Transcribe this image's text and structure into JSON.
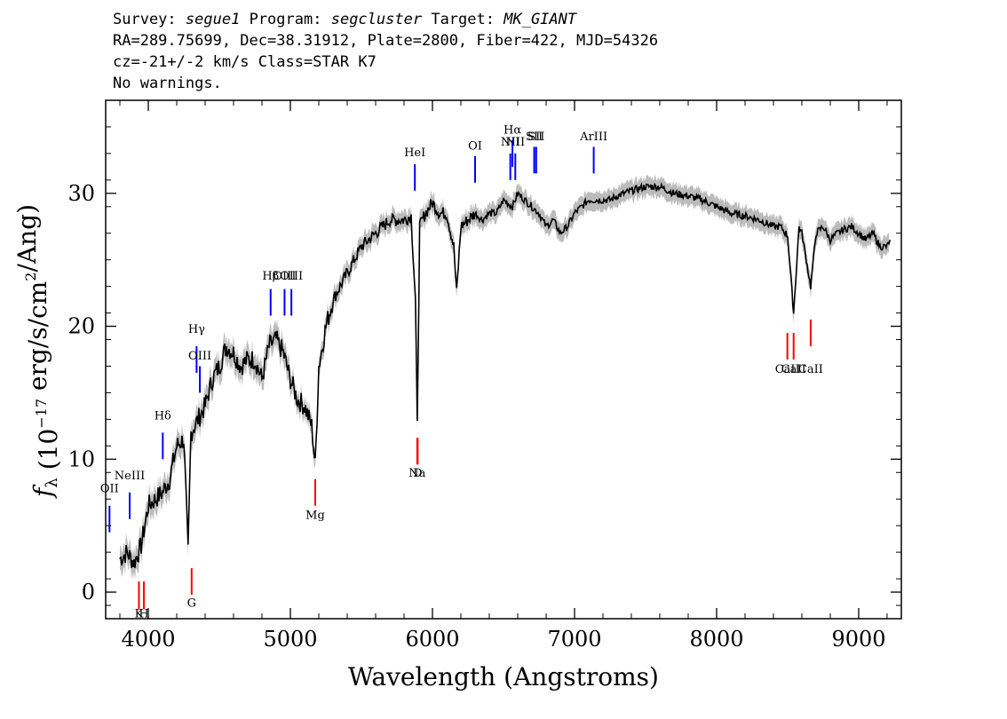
{
  "header": {
    "survey_label": "Survey:",
    "survey": "segue1",
    "program_label": "Program:",
    "program": "segcluster",
    "target_label": "Target:",
    "target": "MK_GIANT",
    "line2": "RA=289.75699, Dec=38.31912, Plate=2800, Fiber=422, MJD=54326",
    "cz": "cz=-21+/-2 km/s Class=STAR K7",
    "line4": "No warnings."
  },
  "chart_data": {
    "type": "line",
    "xlabel": "Wavelength (Angstroms)",
    "ylabel": "fλ (10⁻¹⁷ erg/s/cm²/Ang)",
    "xlim": [
      3700,
      9300
    ],
    "ylim": [
      -2,
      37
    ],
    "xticks": [
      4000,
      5000,
      6000,
      7000,
      8000,
      9000
    ],
    "yticks": [
      0,
      10,
      20,
      30
    ],
    "series": [
      {
        "color": "#000000",
        "x": [
          3800,
          3850,
          3900,
          3950,
          4000,
          4050,
          4100,
          4150,
          4200,
          4250,
          4280,
          4300,
          4350,
          4400,
          4450,
          4500,
          4550,
          4600,
          4650,
          4700,
          4750,
          4800,
          4850,
          4900,
          4950,
          5000,
          5050,
          5100,
          5150,
          5175,
          5200,
          5250,
          5300,
          5350,
          5400,
          5450,
          5500,
          5550,
          5600,
          5650,
          5700,
          5750,
          5800,
          5850,
          5880,
          5893,
          5910,
          5950,
          6000,
          6050,
          6100,
          6150,
          6170,
          6200,
          6250,
          6300,
          6350,
          6400,
          6450,
          6500,
          6563,
          6600,
          6650,
          6700,
          6750,
          6800,
          6850,
          6900,
          6950,
          7000,
          7050,
          7100,
          7150,
          7200,
          7250,
          7300,
          7400,
          7500,
          7600,
          7700,
          7800,
          7900,
          8000,
          8100,
          8200,
          8300,
          8400,
          8450,
          8500,
          8542,
          8580,
          8600,
          8662,
          8700,
          8750,
          8800,
          8850,
          8900,
          8950,
          9000,
          9050,
          9100,
          9150,
          9200,
          9220
        ],
        "y": [
          2.5,
          3,
          2.2,
          3.5,
          6.5,
          7,
          7.5,
          8.5,
          11,
          11.5,
          3,
          12,
          13,
          14,
          16,
          17,
          18.5,
          18,
          17,
          17.5,
          17.5,
          16,
          18.5,
          19,
          18,
          16,
          14.5,
          14,
          12.5,
          9.5,
          17,
          20,
          22,
          23,
          24,
          25,
          26,
          26.5,
          27,
          27.5,
          28,
          28,
          28,
          28.3,
          22,
          12.5,
          27.5,
          28.5,
          29.3,
          28.5,
          28.5,
          26,
          22.5,
          27.5,
          28,
          28.5,
          28,
          28.5,
          28.5,
          29.5,
          29,
          30,
          29.5,
          29,
          28.5,
          27.5,
          28,
          27,
          27.5,
          28.5,
          29,
          29.5,
          29.5,
          29.5,
          29.5,
          29.8,
          30.2,
          30.5,
          30.5,
          30,
          29.8,
          29.5,
          29,
          28.5,
          28.3,
          28,
          27.5,
          27.5,
          26.8,
          21,
          27.5,
          27,
          23,
          27,
          27.5,
          26.5,
          27,
          27.3,
          27.5,
          27,
          26.5,
          27,
          26,
          26,
          26.5
        ]
      }
    ],
    "emission_lines": [
      {
        "label": "OII",
        "wavelength": 3727,
        "top_y": 6.5,
        "bottom_y": 4.5,
        "label_y": 7.5
      },
      {
        "label": "NeIII",
        "wavelength": 3869,
        "top_y": 7.5,
        "bottom_y": 5.5,
        "label_y": 8.5
      },
      {
        "label": "Hδ",
        "wavelength": 4102,
        "top_y": 12,
        "bottom_y": 10,
        "label_y": 13
      },
      {
        "label": "Hγ",
        "wavelength": 4340,
        "top_y": 18.5,
        "bottom_y": 16.5,
        "label_y": 19.5
      },
      {
        "label": "OIII",
        "wavelength": 4363,
        "top_y": 17,
        "bottom_y": 15,
        "label_y": 17.5
      },
      {
        "label": "Hβ",
        "wavelength": 4861,
        "top_y": 22.8,
        "bottom_y": 20.8,
        "label_y": 23.5
      },
      {
        "label": "OIII",
        "wavelength": 4959,
        "top_y": 22.8,
        "bottom_y": 20.8,
        "label_y": 23.5
      },
      {
        "label": "OIII",
        "wavelength": 5007,
        "top_y": 22.8,
        "bottom_y": 20.8,
        "label_y": 23.5
      },
      {
        "label": "HeI",
        "wavelength": 5876,
        "top_y": 32.2,
        "bottom_y": 30.2,
        "label_y": 32.8
      },
      {
        "label": "OI",
        "wavelength": 6300,
        "top_y": 32.8,
        "bottom_y": 30.8,
        "label_y": 33.3
      },
      {
        "label": "NII",
        "wavelength": 6548,
        "top_y": 33,
        "bottom_y": 31,
        "label_y": 33.6
      },
      {
        "label": "Hα",
        "wavelength": 6563,
        "top_y": 34,
        "bottom_y": 32,
        "label_y": 34.5
      },
      {
        "label": "NII",
        "wavelength": 6583,
        "top_y": 33,
        "bottom_y": 31,
        "label_y": 33.6
      },
      {
        "label": "SII",
        "wavelength": 6716,
        "top_y": 33.5,
        "bottom_y": 31.5,
        "label_y": 34
      },
      {
        "label": "SII",
        "wavelength": 6730,
        "top_y": 33.5,
        "bottom_y": 31.5,
        "label_y": 34
      },
      {
        "label": "ArIII",
        "wavelength": 7135,
        "top_y": 33.5,
        "bottom_y": 31.5,
        "label_y": 34
      }
    ],
    "absorption_lines": [
      {
        "label": "K",
        "wavelength": 3934,
        "top_y": 0.8,
        "bottom_y": -1.3,
        "label_y": -1.9
      },
      {
        "label": "H",
        "wavelength": 3969,
        "top_y": 0.8,
        "bottom_y": -1.3,
        "label_y": -1.9
      },
      {
        "label": "G",
        "wavelength": 4305,
        "top_y": 1.8,
        "bottom_y": -0.2,
        "label_y": -1.1
      },
      {
        "label": "Mg",
        "wavelength": 5175,
        "top_y": 8.5,
        "bottom_y": 6.5,
        "label_y": 5.5
      },
      {
        "label": "Na",
        "wavelength": 5893,
        "top_y": 11.6,
        "bottom_y": 9.6,
        "label_y": 8.7
      },
      {
        "label": "D",
        "wavelength": 5896,
        "top_y": 11.6,
        "bottom_y": 9.6,
        "label_y": 8.7
      },
      {
        "label": "CaII",
        "wavelength": 8498,
        "top_y": 19.5,
        "bottom_y": 17.5,
        "label_y": 16.5
      },
      {
        "label": "CaII",
        "wavelength": 8542,
        "top_y": 19.5,
        "bottom_y": 17.5,
        "label_y": 16.5
      },
      {
        "label": "CaII",
        "wavelength": 8662,
        "top_y": 20.5,
        "bottom_y": 18.5,
        "label_y": 16.5
      }
    ],
    "colors": {
      "spectrum": "#000000",
      "error": "#bbbbbb",
      "emission": "#0000ff",
      "absorption": "#ff0000"
    }
  }
}
